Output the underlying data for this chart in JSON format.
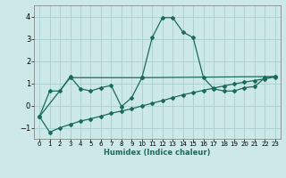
{
  "xlabel": "Humidex (Indice chaleur)",
  "bg_color": "#cce8e8",
  "line_color": "#1a6b5a",
  "grid_color": "#aacfcf",
  "xlim": [
    -0.5,
    23.5
  ],
  "ylim": [
    -1.5,
    4.5
  ],
  "yticks": [
    -1,
    0,
    1,
    2,
    3,
    4
  ],
  "xticks": [
    0,
    1,
    2,
    3,
    4,
    5,
    6,
    7,
    8,
    9,
    10,
    11,
    12,
    13,
    14,
    15,
    16,
    17,
    18,
    19,
    20,
    21,
    22,
    23
  ],
  "line1_x": [
    0,
    1,
    2,
    3,
    4,
    5,
    6,
    7,
    8,
    9,
    10,
    11,
    12,
    13,
    14,
    15,
    16,
    17,
    18,
    19,
    20,
    21,
    22,
    23
  ],
  "line1_y": [
    -0.5,
    0.65,
    0.65,
    1.3,
    0.75,
    0.65,
    0.8,
    0.9,
    -0.05,
    0.35,
    1.25,
    3.05,
    3.95,
    3.95,
    3.3,
    3.05,
    1.25,
    0.75,
    0.65,
    0.65,
    0.8,
    0.85,
    1.25,
    1.3
  ],
  "line2_x": [
    0,
    1,
    2,
    3,
    4,
    5,
    6,
    7,
    8,
    9,
    10,
    11,
    12,
    13,
    14,
    15,
    16,
    17,
    18,
    19,
    20,
    21,
    22,
    23
  ],
  "line2_y": [
    -0.5,
    -1.2,
    -1.0,
    -0.85,
    -0.7,
    -0.6,
    -0.48,
    -0.35,
    -0.25,
    -0.15,
    -0.02,
    0.1,
    0.22,
    0.35,
    0.48,
    0.58,
    0.68,
    0.78,
    0.88,
    0.97,
    1.05,
    1.12,
    1.2,
    1.28
  ],
  "line3_x": [
    0,
    3,
    10,
    23
  ],
  "line3_y": [
    -0.5,
    1.25,
    1.25,
    1.3
  ],
  "xlabel_fontsize": 6.0,
  "xlabel_color": "#1a6b5a",
  "ytick_fontsize": 6.0,
  "xtick_fontsize": 5.0,
  "linewidth": 0.9,
  "markersize": 2.0
}
